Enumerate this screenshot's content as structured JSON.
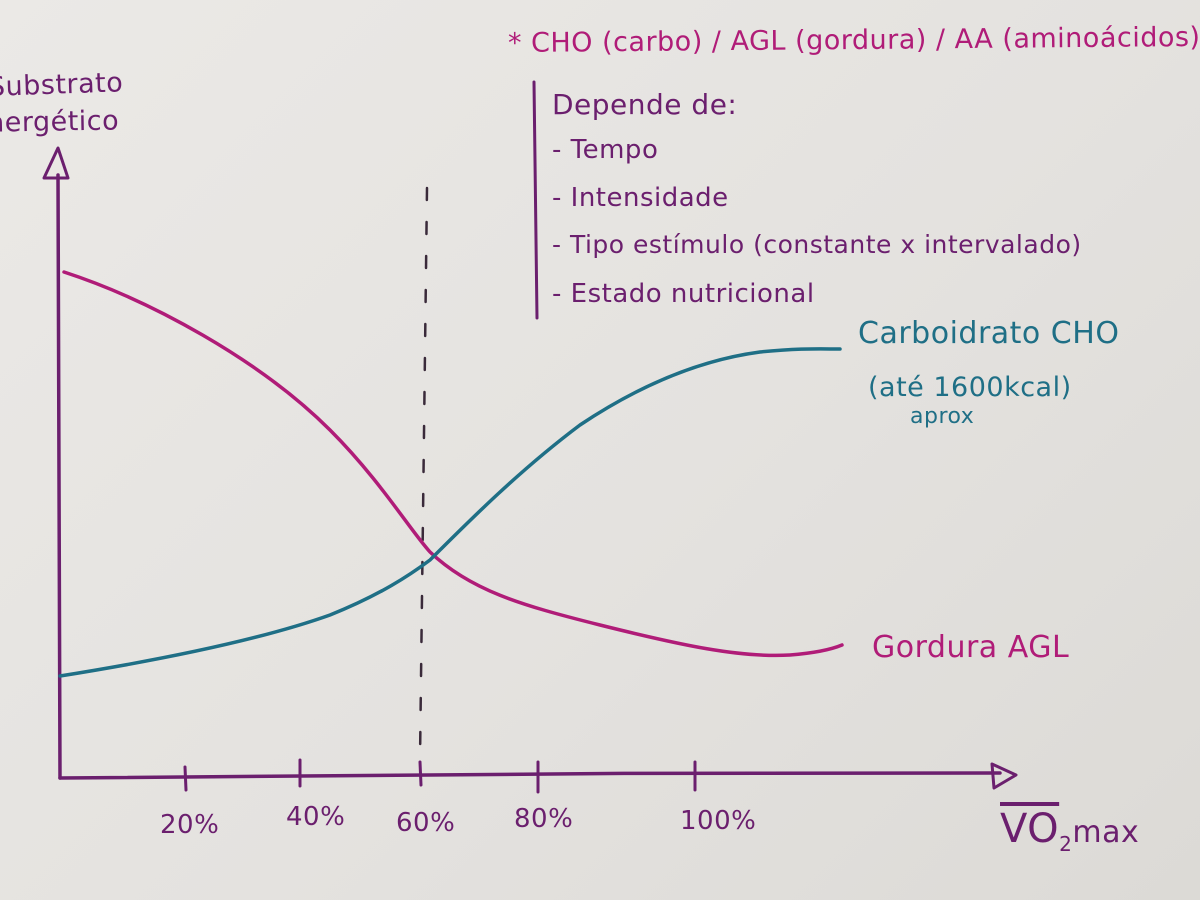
{
  "header_note": "* CHO (carbo) / AGL (gordura) / AA (aminoácidos) *",
  "y_axis_label": [
    "Substrato",
    "energético"
  ],
  "x_axis_label_vo2": "VO",
  "x_axis_label_sub": "2",
  "x_axis_label_max": "max",
  "depends_title": "Depende de:",
  "depends_items": [
    "- Tempo",
    "- Intensidade",
    "- Tipo estímulo (constante x intervalado)",
    "- Estado nutricional"
  ],
  "series_labels": {
    "cho_line1": "Carboidrato CHO",
    "cho_line2": "(até 1600kcal)",
    "cho_line3": "aprox",
    "fat": "Gordura AGL"
  },
  "x_ticks": [
    "20%",
    "40%",
    "60%",
    "80%",
    "100%"
  ],
  "colors": {
    "axis": "#6b1f6e",
    "fat_curve": "#b01c78",
    "cho_curve": "#1f6f86",
    "header_note": "#b01c78"
  }
}
